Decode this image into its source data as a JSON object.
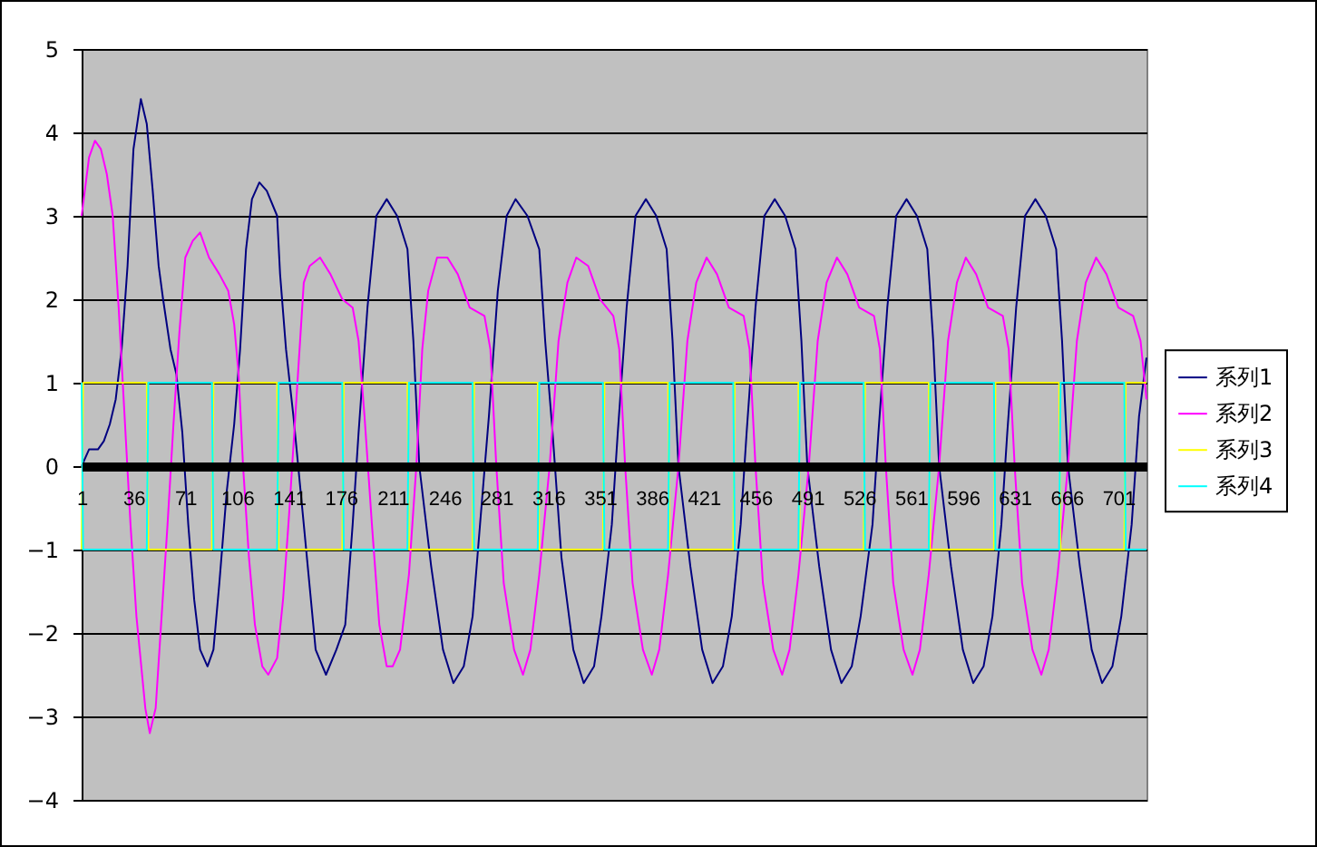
{
  "chart_data": {
    "type": "line",
    "xlim": [
      1,
      720
    ],
    "xticks": [
      1,
      36,
      71,
      106,
      141,
      176,
      211,
      246,
      281,
      316,
      351,
      386,
      421,
      456,
      491,
      526,
      561,
      596,
      631,
      666,
      701
    ],
    "ylim": [
      -4,
      5
    ],
    "yticks": [
      -4,
      -3,
      -2,
      -1,
      0,
      1,
      2,
      3,
      4,
      5
    ],
    "grid": "y",
    "legend": "right",
    "series": [
      {
        "name": "系列1",
        "color": "#000080",
        "x": [
          1,
          6,
          12,
          16,
          20,
          24,
          28,
          32,
          36,
          41,
          45,
          49,
          53,
          56,
          61,
          65,
          69,
          73,
          77,
          81,
          86,
          90,
          94,
          99,
          104,
          108,
          112,
          116,
          121,
          126,
          133,
          135,
          139,
          144,
          151,
          159,
          166,
          173,
          179,
          184,
          188,
          194,
          200,
          207,
          214,
          221,
          225,
          229,
          237,
          245,
          252,
          259,
          265,
          270,
          276,
          282,
          288,
          294,
          302,
          310,
          314,
          319,
          325,
          333,
          340,
          347,
          352,
          359,
          363,
          369,
          375,
          382,
          389,
          396,
          400,
          404,
          412,
          420,
          427,
          434,
          440,
          446,
          450,
          456,
          462,
          469,
          476,
          483,
          487,
          491,
          499,
          507,
          514,
          521,
          527,
          535,
          539,
          545,
          551,
          558,
          565,
          572,
          576,
          580,
          588,
          596,
          603,
          610,
          616,
          622,
          626,
          632,
          638,
          645,
          652,
          659,
          663,
          667,
          675,
          683,
          690,
          697,
          703,
          710,
          715,
          720
        ],
        "values": [
          0,
          0.2,
          0.2,
          0.3,
          0.5,
          0.8,
          1.4,
          2.4,
          3.8,
          4.4,
          4.1,
          3.3,
          2.4,
          2.0,
          1.4,
          1.1,
          0.4,
          -0.7,
          -1.6,
          -2.2,
          -2.4,
          -2.2,
          -1.4,
          -0.3,
          0.5,
          1.4,
          2.6,
          3.2,
          3.4,
          3.3,
          3.0,
          2.3,
          1.4,
          0.6,
          -0.7,
          -2.2,
          -2.5,
          -2.2,
          -1.9,
          -0.7,
          0.4,
          1.9,
          3.0,
          3.2,
          3.0,
          2.6,
          1.5,
          0.0,
          -1.2,
          -2.2,
          -2.6,
          -2.4,
          -1.8,
          -0.7,
          0.6,
          2.1,
          3.0,
          3.2,
          3.0,
          2.6,
          1.5,
          0.4,
          -1.1,
          -2.2,
          -2.6,
          -2.4,
          -1.8,
          -0.7,
          0.4,
          1.9,
          3.0,
          3.2,
          3.0,
          2.6,
          1.5,
          0.0,
          -1.2,
          -2.2,
          -2.6,
          -2.4,
          -1.8,
          -0.7,
          0.4,
          1.9,
          3.0,
          3.2,
          3.0,
          2.6,
          1.5,
          0.0,
          -1.2,
          -2.2,
          -2.6,
          -2.4,
          -1.8,
          -0.7,
          0.4,
          1.9,
          3.0,
          3.2,
          3.0,
          2.6,
          1.5,
          0.0,
          -1.2,
          -2.2,
          -2.6,
          -2.4,
          -1.8,
          -0.7,
          0.4,
          1.9,
          3.0,
          3.2,
          3.0,
          2.6,
          1.5,
          0.0,
          -1.2,
          -2.2,
          -2.6,
          -2.4,
          -1.8,
          -0.7,
          0.6,
          1.3
        ]
      },
      {
        "name": "系列2",
        "color": "#ff00ff",
        "x": [
          1,
          6,
          10,
          14,
          18,
          22,
          26,
          30,
          34,
          38,
          44,
          47,
          51,
          55,
          59,
          63,
          67,
          71,
          76,
          81,
          87,
          94,
          100,
          104,
          107,
          110,
          114,
          118,
          123,
          127,
          133,
          137,
          141,
          146,
          151,
          155,
          162,
          169,
          177,
          184,
          188,
          192,
          197,
          202,
          207,
          211,
          216,
          222,
          227,
          231,
          235,
          241,
          248,
          255,
          263,
          273,
          277,
          281,
          286,
          293,
          299,
          304,
          310,
          317,
          323,
          329,
          335,
          343,
          351,
          360,
          364,
          368,
          373,
          380,
          386,
          391,
          397,
          404,
          410,
          416,
          423,
          430,
          438,
          448,
          452,
          456,
          461,
          468,
          474,
          479,
          485,
          492,
          498,
          504,
          511,
          518,
          526,
          536,
          540,
          544,
          549,
          556,
          562,
          567,
          573,
          580,
          586,
          592,
          598,
          605,
          613,
          623,
          627,
          631,
          636,
          643,
          649,
          654,
          660,
          667,
          673,
          679,
          686,
          693,
          701,
          711,
          716,
          720
        ],
        "values": [
          3.0,
          3.7,
          3.9,
          3.8,
          3.5,
          3.0,
          1.9,
          0.6,
          -0.7,
          -1.8,
          -2.9,
          -3.2,
          -2.9,
          -1.8,
          -0.7,
          0.5,
          1.6,
          2.5,
          2.7,
          2.8,
          2.5,
          2.3,
          2.1,
          1.7,
          1.1,
          0.0,
          -1.1,
          -1.9,
          -2.4,
          -2.5,
          -2.3,
          -1.6,
          -0.6,
          0.8,
          2.2,
          2.4,
          2.5,
          2.3,
          2.0,
          1.9,
          1.5,
          0.6,
          -0.7,
          -1.9,
          -2.4,
          -2.4,
          -2.2,
          -1.3,
          0.0,
          1.4,
          2.1,
          2.5,
          2.5,
          2.3,
          1.9,
          1.8,
          1.4,
          0.0,
          -1.4,
          -2.2,
          -2.5,
          -2.2,
          -1.3,
          0.0,
          1.5,
          2.2,
          2.5,
          2.4,
          2.0,
          1.8,
          1.4,
          0.0,
          -1.4,
          -2.2,
          -2.5,
          -2.2,
          -1.3,
          0.0,
          1.5,
          2.2,
          2.5,
          2.3,
          1.9,
          1.8,
          1.4,
          0.0,
          -1.4,
          -2.2,
          -2.5,
          -2.2,
          -1.3,
          0.0,
          1.5,
          2.2,
          2.5,
          2.3,
          1.9,
          1.8,
          1.4,
          0.0,
          -1.4,
          -2.2,
          -2.5,
          -2.2,
          -1.3,
          0.0,
          1.5,
          2.2,
          2.5,
          2.3,
          1.9,
          1.8,
          1.4,
          0.0,
          -1.4,
          -2.2,
          -2.5,
          -2.2,
          -1.3,
          0.0,
          1.5,
          2.2,
          2.5,
          2.3,
          1.9,
          1.8,
          1.5,
          0.8
        ]
      },
      {
        "name": "系列3",
        "color": "#ffff00",
        "x": [
          1,
          2,
          45,
          46,
          89,
          90,
          133,
          134,
          177,
          178,
          221,
          222,
          265,
          266,
          309,
          310,
          353,
          354,
          397,
          398,
          441,
          442,
          485,
          486,
          529,
          530,
          573,
          574,
          617,
          618,
          661,
          662,
          705,
          706,
          720
        ],
        "values": [
          -1,
          1,
          1,
          -1,
          -1,
          1,
          1,
          -1,
          -1,
          1,
          1,
          -1,
          -1,
          1,
          1,
          -1,
          -1,
          1,
          1,
          -1,
          -1,
          1,
          1,
          -1,
          -1,
          1,
          1,
          -1,
          -1,
          1,
          1,
          -1,
          -1,
          1,
          1
        ]
      },
      {
        "name": "系列4",
        "color": "#00ffff",
        "x": [
          1,
          2,
          45,
          46,
          89,
          90,
          133,
          134,
          177,
          178,
          221,
          222,
          265,
          266,
          309,
          310,
          353,
          354,
          397,
          398,
          441,
          442,
          485,
          486,
          529,
          530,
          573,
          574,
          617,
          618,
          661,
          662,
          705,
          706,
          720
        ],
        "values": [
          1,
          -1,
          -1,
          1,
          1,
          -1,
          -1,
          1,
          1,
          -1,
          -1,
          1,
          1,
          -1,
          -1,
          1,
          1,
          -1,
          -1,
          1,
          1,
          -1,
          -1,
          1,
          1,
          -1,
          -1,
          1,
          1,
          -1,
          -1,
          1,
          1,
          -1,
          -1
        ]
      }
    ]
  }
}
